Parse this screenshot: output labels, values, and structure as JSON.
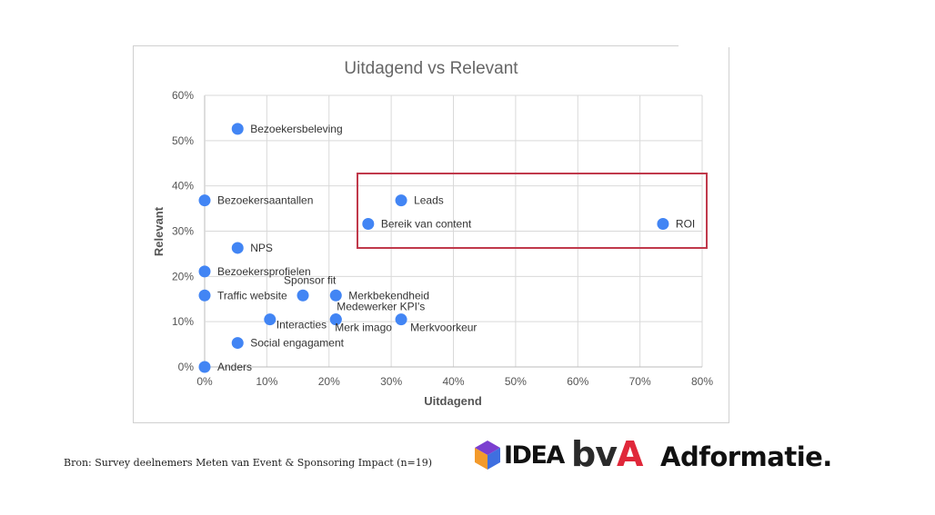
{
  "chart_data": {
    "type": "scatter",
    "title": "Uitdagend vs Relevant",
    "xlabel": "Uitdagend",
    "ylabel": "Relevant",
    "xlim": [
      0,
      80
    ],
    "ylim": [
      0,
      60
    ],
    "x_ticks": [
      "0%",
      "10%",
      "20%",
      "30%",
      "40%",
      "50%",
      "60%",
      "70%",
      "80%"
    ],
    "y_ticks": [
      "0%",
      "10%",
      "20%",
      "30%",
      "40%",
      "50%",
      "60%"
    ],
    "grid": true,
    "point_color": "#4285f4",
    "highlight_box_color": "#c0394b",
    "points": [
      {
        "label": "Bezoekersbeleving",
        "x": 5.3,
        "y": 52.6
      },
      {
        "label": "Bezoekersaantallen",
        "x": 0,
        "y": 36.8
      },
      {
        "label": "Leads",
        "x": 31.6,
        "y": 36.8
      },
      {
        "label": "Bereik van content",
        "x": 26.3,
        "y": 31.6
      },
      {
        "label": "ROI",
        "x": 73.7,
        "y": 31.6
      },
      {
        "label": "NPS",
        "x": 5.3,
        "y": 26.3
      },
      {
        "label": "Bezoekersprofielen",
        "x": 0,
        "y": 21.1
      },
      {
        "label": "Traffic website",
        "x": 0,
        "y": 15.8
      },
      {
        "label": "Sponsor fit",
        "x": 15.8,
        "y": 15.8
      },
      {
        "label": "Merkbekendheid",
        "x": 21.1,
        "y": 15.8
      },
      {
        "label": "Interacties",
        "x": 10.5,
        "y": 10.5
      },
      {
        "label": "Medewerker KPI's",
        "x": 21.1,
        "y": 10.5
      },
      {
        "label": "Merk imago",
        "x": 21.1,
        "y": 10.5
      },
      {
        "label": "Merkvoorkeur",
        "x": 31.6,
        "y": 10.5
      },
      {
        "label": "Social engagament",
        "x": 5.3,
        "y": 5.3
      },
      {
        "label": "Anders",
        "x": 0,
        "y": 0
      }
    ]
  },
  "footer": {
    "source": "Bron: Survey deelnemers Meten van Event & Sponsoring Impact (n=19)",
    "logos": {
      "idea": "IDEA",
      "bva_b": "bv",
      "bva_a": "A",
      "adformatie": "Adformatie."
    }
  }
}
